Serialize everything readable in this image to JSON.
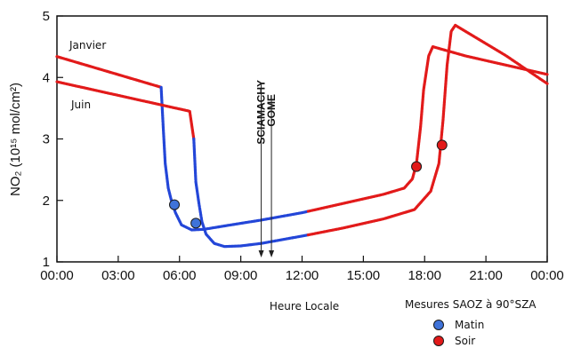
{
  "chart_data": {
    "type": "line",
    "xlabel": "Heure Locale",
    "ylabel": "NO₂ (10¹⁵ mol/cm²)",
    "xlim": [
      0,
      24
    ],
    "ylim": [
      1,
      5
    ],
    "x_ticks": [
      "00:00",
      "03:00",
      "06:00",
      "09:00",
      "12:00",
      "15:00",
      "18:00",
      "21:00",
      "00:00"
    ],
    "y_ticks": [
      "1",
      "2",
      "3",
      "4",
      "5"
    ],
    "grid": false,
    "colors": {
      "matin": "#2346d8",
      "soir": "#e21a1a"
    },
    "series": [
      {
        "name": "Janvier",
        "points": [
          [
            0,
            4.34
          ],
          [
            5.1,
            3.84
          ],
          [
            5.2,
            3.2
          ],
          [
            5.3,
            2.6
          ],
          [
            5.45,
            2.2
          ],
          [
            5.6,
            2.0
          ],
          [
            5.8,
            1.8
          ],
          [
            6.1,
            1.6
          ],
          [
            6.6,
            1.52
          ],
          [
            7.2,
            1.53
          ],
          [
            8.5,
            1.6
          ],
          [
            10,
            1.68
          ],
          [
            12,
            1.8
          ],
          [
            14,
            1.95
          ],
          [
            16,
            2.1
          ],
          [
            17,
            2.2
          ],
          [
            17.4,
            2.35
          ],
          [
            17.6,
            2.6
          ],
          [
            17.8,
            3.2
          ],
          [
            17.95,
            3.8
          ],
          [
            18.2,
            4.35
          ],
          [
            18.4,
            4.5
          ],
          [
            20,
            4.35
          ],
          [
            24,
            4.05
          ]
        ],
        "sunrise": 5.1,
        "sunset": 12.3
      },
      {
        "name": "Juin",
        "points": [
          [
            0,
            3.93
          ],
          [
            6.5,
            3.45
          ],
          [
            6.7,
            3.0
          ],
          [
            6.8,
            2.3
          ],
          [
            6.95,
            1.95
          ],
          [
            7.1,
            1.65
          ],
          [
            7.3,
            1.45
          ],
          [
            7.7,
            1.3
          ],
          [
            8.2,
            1.25
          ],
          [
            9,
            1.26
          ],
          [
            10,
            1.3
          ],
          [
            12,
            1.42
          ],
          [
            14,
            1.55
          ],
          [
            16,
            1.7
          ],
          [
            17.5,
            1.85
          ],
          [
            18.3,
            2.15
          ],
          [
            18.7,
            2.6
          ],
          [
            18.9,
            3.3
          ],
          [
            19.1,
            4.2
          ],
          [
            19.3,
            4.75
          ],
          [
            19.5,
            4.85
          ],
          [
            22,
            4.35
          ],
          [
            24,
            3.9
          ]
        ],
        "sunrise": 6.6,
        "sunset": 12.3
      }
    ],
    "saoz_points": [
      {
        "x": 5.75,
        "y": 1.93,
        "type": "matin"
      },
      {
        "x": 6.8,
        "y": 1.63,
        "type": "matin"
      },
      {
        "x": 17.6,
        "y": 2.55,
        "type": "soir"
      },
      {
        "x": 18.85,
        "y": 2.9,
        "type": "soir"
      }
    ],
    "series_labels": [
      "Janvier",
      "Juin"
    ],
    "annotations": [
      {
        "label": "SCIAMACHY",
        "x": 10.0
      },
      {
        "label": "GOME",
        "x": 10.5
      }
    ],
    "legend": {
      "title": "Mesures SAOZ à 90°SZA",
      "items": [
        {
          "label": "Matin",
          "color": "#3f73d9"
        },
        {
          "label": "Soir",
          "color": "#e21a1a"
        }
      ]
    }
  }
}
